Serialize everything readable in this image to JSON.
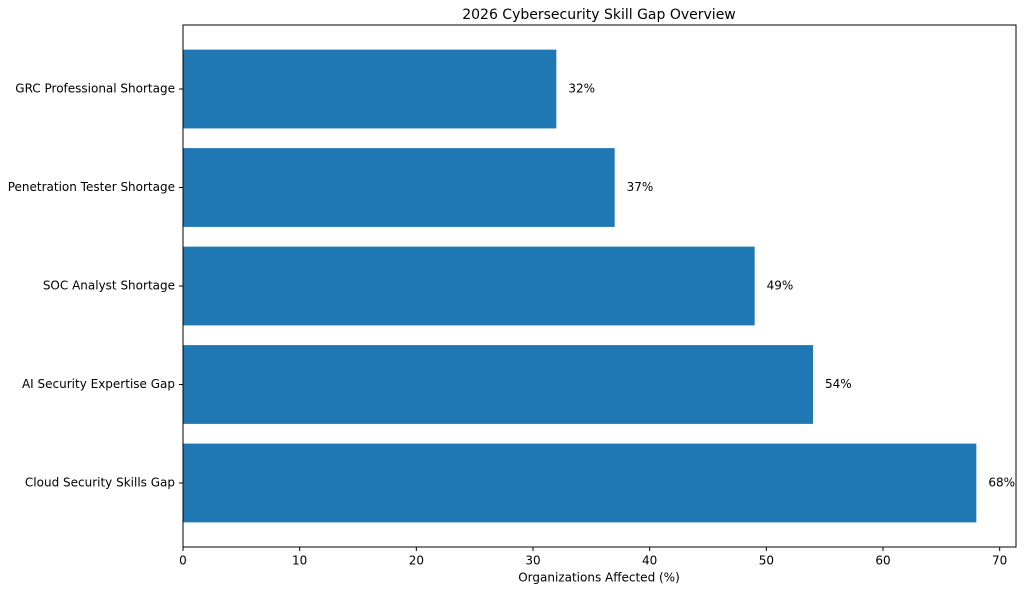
{
  "chart_data": {
    "type": "barh",
    "title": "2026 Cybersecurity Skill Gap Overview",
    "x_label": "Organizations Affected (%)",
    "categories": [
      "Cloud Security Skills Gap",
      "AI Security Expertise Gap",
      "SOC Analyst Shortage",
      "Penetration Tester Shortage",
      "GRC Professional Shortage"
    ],
    "values": [
      68,
      54,
      49,
      37,
      32
    ],
    "value_labels": [
      "68%",
      "54%",
      "49%",
      "37%",
      "32%"
    ],
    "color": "#1f77b4",
    "xlim": [
      0,
      71.4
    ],
    "xticks": [
      0,
      10,
      20,
      30,
      40,
      50,
      60,
      70
    ]
  }
}
